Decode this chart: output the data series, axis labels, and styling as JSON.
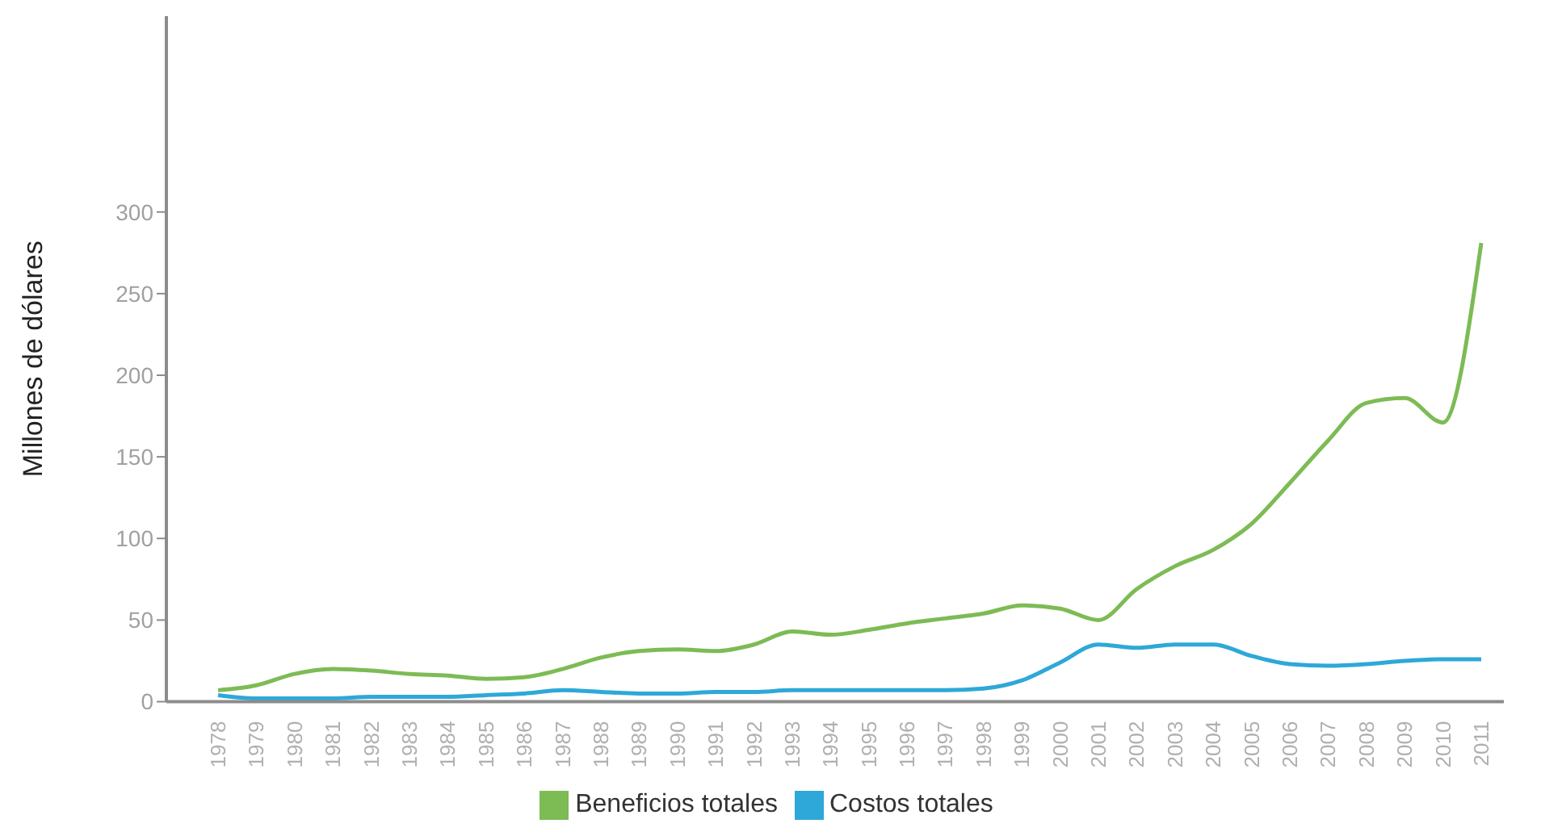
{
  "chart_data": {
    "type": "line",
    "ylabel": "Millones de dólares",
    "categories": [
      "1978",
      "1979",
      "1980",
      "1981",
      "1982",
      "1983",
      "1984",
      "1985",
      "1986",
      "1987",
      "1988",
      "1989",
      "1990",
      "1991",
      "1992",
      "1993",
      "1994",
      "1995",
      "1996",
      "1997",
      "1998",
      "1999",
      "2000",
      "2001",
      "2002",
      "2003",
      "2004",
      "2005",
      "2006",
      "2007",
      "2008",
      "2009",
      "2010",
      "2011"
    ],
    "series": [
      {
        "name": "Beneficios totales",
        "color": "#7dbb55",
        "values": [
          7,
          10,
          17,
          20,
          19,
          17,
          16,
          14,
          15,
          20,
          27,
          31,
          32,
          31,
          35,
          43,
          41,
          44,
          48,
          51,
          54,
          59,
          57,
          50,
          69,
          83,
          93,
          109,
          134,
          160,
          183,
          186,
          171,
          281
        ]
      },
      {
        "name": "Costos totales",
        "color": "#2ea8d8",
        "values": [
          4,
          2,
          2,
          2,
          3,
          3,
          3,
          4,
          5,
          7,
          6,
          5,
          5,
          6,
          6,
          7,
          7,
          7,
          7,
          7,
          8,
          13,
          24,
          35,
          33,
          35,
          35,
          28,
          23,
          22,
          23,
          25,
          26,
          26
        ]
      }
    ],
    "ylim": [
      0,
      420
    ],
    "yticks": [
      0,
      50,
      100,
      150,
      200,
      250,
      300
    ],
    "grid": false,
    "legend": "bottom",
    "marker": "none",
    "line_style": "solid"
  }
}
